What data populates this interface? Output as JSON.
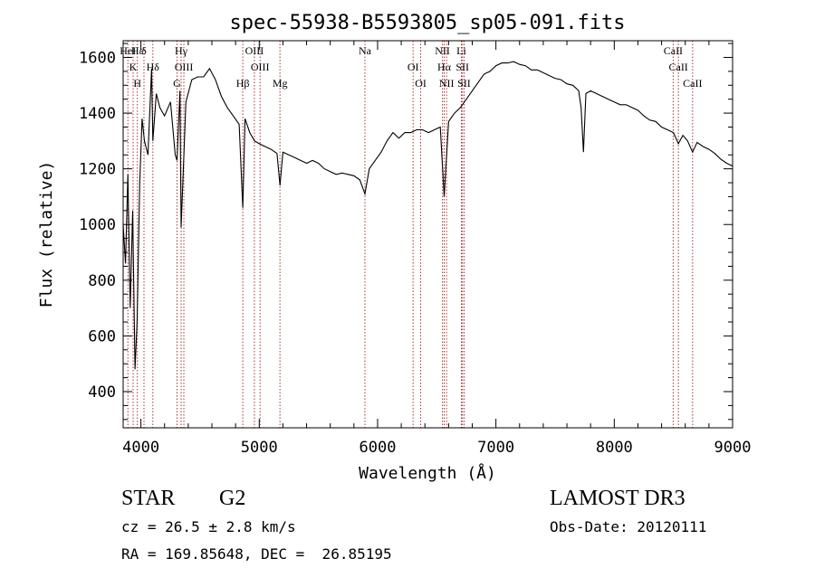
{
  "chart_data": {
    "type": "line",
    "title": "spec-55938-B5593805_sp05-091.fits",
    "xlabel": "Wavelength (Å)",
    "ylabel": "Flux (relative)",
    "xlim": [
      3850,
      9000
    ],
    "ylim": [
      270,
      1660
    ],
    "xticks": [
      4000,
      5000,
      6000,
      7000,
      8000,
      9000
    ],
    "yticks": [
      400,
      600,
      800,
      1000,
      1200,
      1400,
      1600
    ],
    "grid": false,
    "series": [
      {
        "x": [
          3850,
          3870,
          3890,
          3910,
          3930,
          3950,
          3968,
          3990,
          4010,
          4030,
          4060,
          4090,
          4101,
          4130,
          4160,
          4200,
          4250,
          4290,
          4305,
          4330,
          4340,
          4380,
          4430,
          4480,
          4530,
          4580,
          4630,
          4680,
          4730,
          4780,
          4830,
          4861,
          4880,
          4920,
          4960,
          5000,
          5050,
          5100,
          5150,
          5175,
          5200,
          5250,
          5300,
          5350,
          5400,
          5450,
          5500,
          5550,
          5600,
          5650,
          5700,
          5750,
          5800,
          5850,
          5893,
          5930,
          5980,
          6030,
          6080,
          6130,
          6180,
          6230,
          6280,
          6330,
          6380,
          6430,
          6480,
          6530,
          6563,
          6600,
          6650,
          6700,
          6750,
          6800,
          6850,
          6900,
          6950,
          7000,
          7050,
          7100,
          7150,
          7200,
          7250,
          7300,
          7350,
          7400,
          7450,
          7500,
          7550,
          7600,
          7650,
          7700,
          7720,
          7740,
          7760,
          7800,
          7850,
          7900,
          7950,
          8000,
          8050,
          8100,
          8150,
          8200,
          8250,
          8300,
          8350,
          8400,
          8450,
          8500,
          8542,
          8580,
          8620,
          8662,
          8700,
          8750,
          8800,
          8850,
          8900,
          8950,
          9000
        ],
        "y": [
          1000,
          860,
          1180,
          700,
          1050,
          480,
          650,
          1150,
          1380,
          1300,
          1250,
          1560,
          1300,
          1470,
          1420,
          1390,
          1440,
          1250,
          1230,
          1480,
          990,
          1440,
          1520,
          1530,
          1530,
          1560,
          1520,
          1460,
          1420,
          1390,
          1360,
          1060,
          1380,
          1330,
          1300,
          1290,
          1280,
          1270,
          1255,
          1140,
          1260,
          1250,
          1240,
          1230,
          1220,
          1230,
          1220,
          1200,
          1190,
          1180,
          1185,
          1180,
          1175,
          1160,
          1110,
          1200,
          1230,
          1260,
          1300,
          1330,
          1310,
          1330,
          1330,
          1340,
          1340,
          1330,
          1340,
          1350,
          1100,
          1370,
          1400,
          1420,
          1450,
          1480,
          1510,
          1540,
          1550,
          1570,
          1580,
          1580,
          1585,
          1575,
          1570,
          1555,
          1555,
          1545,
          1535,
          1525,
          1520,
          1505,
          1500,
          1480,
          1420,
          1260,
          1470,
          1480,
          1470,
          1460,
          1450,
          1440,
          1430,
          1430,
          1420,
          1410,
          1390,
          1375,
          1370,
          1350,
          1340,
          1330,
          1290,
          1320,
          1300,
          1260,
          1295,
          1280,
          1270,
          1255,
          1235,
          1220,
          1210
        ]
      }
    ],
    "lines": [
      {
        "w": 3890,
        "labels": [
          "HeI"
        ]
      },
      {
        "w": 3934,
        "labels": [
          "K"
        ]
      },
      {
        "w": 3970,
        "labels": [
          "H",
          "Hε"
        ]
      },
      {
        "w": 4026,
        "labels": [
          "δ"
        ]
      },
      {
        "w": 4101,
        "labels": [
          "Hδ"
        ]
      },
      {
        "w": 4305,
        "labels": [
          "G"
        ]
      },
      {
        "w": 4340,
        "labels": [
          "Hγ"
        ]
      },
      {
        "w": 4363,
        "labels": [
          "OIII"
        ]
      },
      {
        "w": 4861,
        "labels": [
          "Hβ"
        ]
      },
      {
        "w": 4959,
        "labels": [
          "OIII"
        ]
      },
      {
        "w": 5007,
        "labels": [
          "OIII"
        ]
      },
      {
        "w": 5175,
        "labels": [
          "Mg"
        ]
      },
      {
        "w": 5893,
        "labels": [
          "Na"
        ]
      },
      {
        "w": 6300,
        "labels": [
          "OI"
        ]
      },
      {
        "w": 6364,
        "labels": [
          "OI"
        ]
      },
      {
        "w": 6548,
        "labels": [
          "NII"
        ]
      },
      {
        "w": 6563,
        "labels": [
          "Hα"
        ]
      },
      {
        "w": 6583,
        "labels": [
          "NII"
        ]
      },
      {
        "w": 6708,
        "labels": [
          "Li"
        ]
      },
      {
        "w": 6717,
        "labels": [
          "SII"
        ]
      },
      {
        "w": 6731,
        "labels": [
          "SII"
        ]
      },
      {
        "w": 8498,
        "labels": [
          "CaII"
        ]
      },
      {
        "w": 8542,
        "labels": [
          "CaII"
        ]
      },
      {
        "w": 8662,
        "labels": [
          "CaII"
        ]
      }
    ]
  },
  "info": {
    "class_label": "STAR",
    "subclass": "G2",
    "cz": "cz = 26.5 ± 2.8 km/s",
    "radec": "RA = 169.85648, DEC =  26.85195",
    "survey": "LAMOST DR3",
    "obs_date": "Obs-Date: 20120111"
  },
  "colors": {
    "spectrum": "#000000",
    "lines": "#b03030",
    "axes": "#000000"
  }
}
